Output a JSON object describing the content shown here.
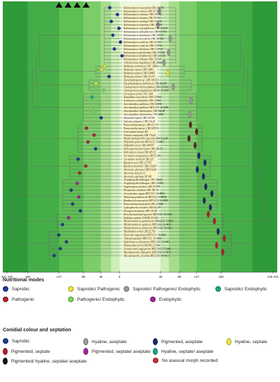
{
  "radial_axis": {
    "left_ticks": [
      "291 245",
      "196",
      "147",
      "98",
      "49",
      "0"
    ],
    "right_ticks": [
      "49",
      "98",
      "147",
      "196",
      "245 291"
    ]
  },
  "taxa": [
    "Kalmusomyces macropoda CBS 130786",
    "Kalmusomyces conicus CBS 117215",
    "Kalmusomyces cunoniae CBS 130722",
    "Kalmusomyces clavatus CBS 107151",
    "Kalmusomyces eucalypti CBS 133746",
    "Kalmusomyces armaniae CBS 133725",
    "Kalmusomyces caryophilianae CBS 133720",
    "Kalmusomyces indicifabricus CBS 131716",
    "Kalmusomyces dioplicatus CBS 133713",
    "Kalmusomyces mccrudens CBS 131724",
    "Kalmusomyces arabicus CBS 131723",
    "Kalmusomyces confertus CBS 133726",
    "Kalmusomyces atlanticus CBS 131719",
    "Kalmusomyces phellorubus CBS 131720",
    "Kalmusomyces delphinensis CBS 133728",
    "Kalmusomyces robustus CBS 133717",
    "Umbelocriscus bagolloyae CBS 209017",
    "Melanops carbonacea CPC 32862",
    "Melanops crassus CBS 32862",
    "Melanops tulasnei CBS 116805",
    "Melanops tulasnei CBS 116.39",
    "Dactyloadiospora sp. CBS 141551",
    "Dactyloadiospora mahhiensis CBS 161569",
    "Cladosporium chlorocephalum CBS 123,862",
    "Cladosporium endophyticum MFLU 18-0087",
    "Curvospora feritis CPC 1041",
    "Zasmidium scaevolicola CBS 127000",
    "Acidomyces acidophilus CBS 123852",
    "Aureobasidium pullulans CBS 100810",
    "Aureobasidium pullulans MFLUCC 16-0296",
    "Aureobasidium thailandense CBS 142.48",
    "Aureobasidium thailandense CPC 2824",
    "Kabatiella lupinii CBS 136304",
    "Sydowia polyspora CBS 116,20",
    "Paraconiothyrium sp. CBS 131.71",
    "Paraconiothyrium sp. CBS 1699-5",
    "Fusicladium betulae RG",
    "Venturia inaequalis CBS 176,42",
    "Metulocladosporiella musicola MUCC 0256",
    "Didymella pomorum MFLUCC 15-0427",
    "Didymella viciae CBS 146979",
    "Helicosporium parviavum CBS 285.72",
    "Helicomyces roseus CBS 283,51",
    "Curvularia senegalensis CBS 515,70",
    "Curvularia ravenelii CBS 221",
    "Bipolaris zeae CBS 127705",
    "Bipolaris drechsleri CBS 136207",
    "Alternaria alternata CBS 916,96",
    "Alternaria botrytis LJ",
    "Alternaria alternata SF 693",
    "Neophysopella dalbergiae CPC 28635",
    "Neophysopella dalbergiae CBS 131450",
    "Stagonospora sacchari CBS 127971",
    "Phomatodes nebulosa CBS 740,75",
    "Acrocalymma vagum MFLUCC 15-0856",
    "Massarina pandanicola MFLUCC 178594",
    "Bambusicola massarinia MFLUCC 11-0389",
    "Paraconiothyrium fuckelii CBS 123428",
    "Leptosphaeria conoidea CBS 616,75",
    "Pleospora herbarum CBS 191,86",
    "Kirschsteiniothelia lignicola MFLUCC 10-0036",
    "Dothidea sambuci DAOM 231303",
    "Minimelanolocus pandanicola MFLUCC 176594",
    "Minimelanolocus aquaticus MFLUCC 11-0436",
    "Minimelanolocus submersus MFLUCC 14-0403",
    "Mytilinidion tortile CBS 52,793",
    "Hysterium angustatum MFLUCC 16-0623",
    "Tubeufia aquatica MFLUCC 16-0083",
    "Dyfrolomyces tiomanensis MFLUCC 13-0441",
    "Melanomma ferrisii DAOM 231304",
    "Acrospermum longisporum MFLUCC 17-2446",
    "Mycosphaerella ellipsoidea MFLUCC 11-0472",
    "Mycosphaerella citrullina MFLUCC 14-0013"
  ],
  "legend": {
    "nutritional_modes": {
      "title": "Nutritional modes",
      "items": [
        {
          "label": "Saprobic",
          "color": "#1f3a93"
        },
        {
          "label": "Saprobic/ Pathogenic",
          "color": "#f2e83a"
        },
        {
          "label": "Saprobic/ Pathogenic/ Endophytic",
          "color": "#9e9e9e"
        },
        {
          "label": "Saprobic/ Endophytic",
          "color": "#1aa889"
        },
        {
          "label": "Pathogenic",
          "color": "#b3202c"
        },
        {
          "label": "Pathogenic/ Endophytic",
          "color": "#7ed957"
        },
        {
          "label": "Endophytic",
          "color": "#a0279a"
        }
      ]
    },
    "conidial_colour": {
      "title": "Conidial colour and septation",
      "items": [
        {
          "label": "Saprobic",
          "color": "#1f3a93"
        },
        {
          "label": "Hyaline, aseptate",
          "color": "#9e9e9e"
        },
        {
          "label": "Pigmented, aseptate",
          "color": "#1b2a6b"
        },
        {
          "label": "Hyaline, septate",
          "color": "#f2e83a"
        },
        {
          "label": "Pigmented, septate",
          "color": "#b3202c"
        },
        {
          "label": "Pigmented, septate/ aseptate",
          "color": "#a0279a"
        },
        {
          "label": "Hyaline, septate/ aseptate",
          "color": "#1aa889"
        },
        {
          "label": "Pigmented/ hyaline, septate/ aseptate",
          "color": "#111111"
        },
        {
          "label": "No asexual morph recorded",
          "color": "#d32f2f"
        }
      ]
    }
  }
}
